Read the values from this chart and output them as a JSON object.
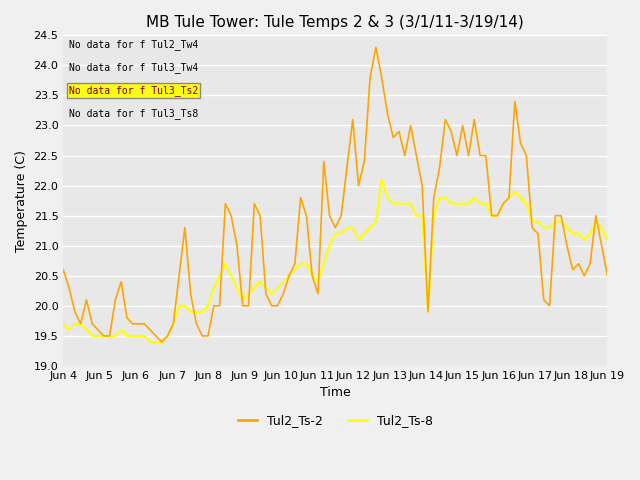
{
  "title": "MB Tule Tower: Tule Temps 2 & 3 (3/1/11-3/19/14)",
  "xlabel": "Time",
  "ylabel": "Temperature (C)",
  "ylim": [
    19.0,
    24.5
  ],
  "yticks": [
    19.0,
    19.5,
    20.0,
    20.5,
    21.0,
    21.5,
    22.0,
    22.5,
    23.0,
    23.5,
    24.0,
    24.5
  ],
  "xtick_labels": [
    "Jun 4",
    "Jun 5",
    "Jun 6",
    "Jun 7",
    "Jun 8",
    "Jun 9",
    "Jun 10",
    "Jun 11",
    "Jun 12",
    "Jun 13",
    "Jun 14",
    "Jun 15",
    "Jun 16",
    "Jun 17",
    "Jun 18",
    "Jun 19"
  ],
  "bg_color": "#e8e8e8",
  "grid_color": "#ffffff",
  "line1_color": "#FFA500",
  "line2_color": "#FFFF00",
  "legend_labels": [
    "Tul2_Ts-2",
    "Tul2_Ts-8"
  ],
  "legend_line1_color": "#FFA500",
  "legend_line2_color": "#FFFF00",
  "watermark_text": [
    "No data for f Tul2_Tw4",
    "No data for f Tul3_Tw4",
    "No data for f Tul3_Ts2",
    "No data for f Tul3_Ts8"
  ],
  "title_fontsize": 11,
  "axis_fontsize": 9,
  "tick_fontsize": 8,
  "ts2": [
    20.6,
    20.3,
    19.9,
    19.7,
    20.1,
    19.7,
    19.6,
    19.5,
    19.5,
    20.1,
    20.4,
    19.8,
    19.7,
    19.7,
    19.7,
    19.6,
    19.5,
    19.4,
    19.5,
    19.7,
    20.5,
    21.3,
    20.2,
    19.7,
    19.5,
    19.5,
    20.0,
    20.0,
    21.7,
    21.5,
    21.0,
    20.0,
    20.0,
    21.7,
    21.5,
    20.2,
    20.0,
    20.0,
    20.2,
    20.5,
    20.7,
    21.8,
    21.5,
    20.5,
    20.2,
    22.4,
    21.5,
    21.3,
    21.5,
    22.3,
    23.1,
    22.0,
    22.4,
    23.8,
    24.3,
    23.8,
    23.2,
    22.8,
    22.9,
    22.5,
    23.0,
    22.5,
    22.0,
    19.9,
    21.8,
    22.3,
    23.1,
    22.9,
    22.5,
    23.0,
    22.5,
    23.1,
    22.5,
    22.5,
    21.5,
    21.5,
    21.7,
    21.8,
    23.4,
    22.7,
    22.5,
    21.3,
    21.2,
    20.1,
    20.0,
    21.5,
    21.5,
    21.0,
    20.6,
    20.7,
    20.5,
    20.7,
    21.5,
    21.0,
    20.5
  ],
  "ts8": [
    19.7,
    19.6,
    19.7,
    19.7,
    19.6,
    19.5,
    19.5,
    19.5,
    19.5,
    19.5,
    19.6,
    19.5,
    19.5,
    19.5,
    19.5,
    19.4,
    19.4,
    19.4,
    19.5,
    19.7,
    20.0,
    20.0,
    19.9,
    19.9,
    19.9,
    20.0,
    20.3,
    20.5,
    20.7,
    20.5,
    20.3,
    20.1,
    20.2,
    20.3,
    20.4,
    20.3,
    20.2,
    20.3,
    20.4,
    20.5,
    20.6,
    20.7,
    20.7,
    20.5,
    20.4,
    20.7,
    21.0,
    21.2,
    21.2,
    21.3,
    21.3,
    21.1,
    21.2,
    21.3,
    21.4,
    22.1,
    21.8,
    21.7,
    21.7,
    21.7,
    21.7,
    21.5,
    21.5,
    19.9,
    21.5,
    21.8,
    21.8,
    21.7,
    21.7,
    21.7,
    21.7,
    21.8,
    21.7,
    21.7,
    21.5,
    21.5,
    21.7,
    21.8,
    21.9,
    21.8,
    21.7,
    21.4,
    21.4,
    21.3,
    21.3,
    21.4,
    21.4,
    21.3,
    21.2,
    21.2,
    21.1,
    21.2,
    21.4,
    21.3,
    21.1
  ]
}
